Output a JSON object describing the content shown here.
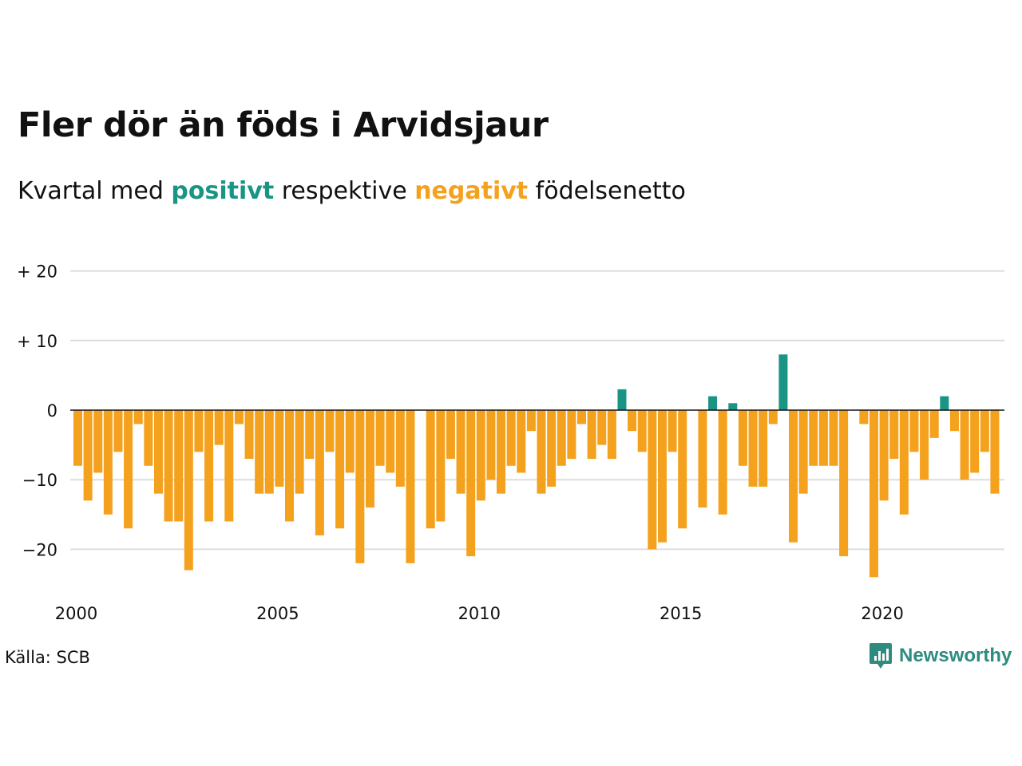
{
  "header": {
    "title": "Fler dör än föds i Arvidsjaur",
    "subtitle_prefix": "Kvartal med ",
    "subtitle_positive": "positivt",
    "subtitle_middle": " respektive ",
    "subtitle_negative": "negativt",
    "subtitle_suffix": " födelsenetto"
  },
  "footer": {
    "source": "Källa: SCB",
    "brand": "Newsworthy"
  },
  "colors": {
    "positive": "#1a9585",
    "negative": "#f4a11d",
    "grid": "#dddddd",
    "zero_line": "#111111"
  },
  "chart_data": {
    "type": "bar",
    "x_start": "2000 Q1",
    "x_step": "quarter",
    "values": [
      -8,
      -13,
      -9,
      -15,
      -6,
      -17,
      -2,
      -8,
      -12,
      -16,
      -16,
      -23,
      -6,
      -16,
      -5,
      -16,
      -2,
      -7,
      -12,
      -12,
      -11,
      -16,
      -12,
      -7,
      -18,
      -6,
      -17,
      -9,
      -22,
      -14,
      -8,
      -9,
      -11,
      -22,
      0,
      -17,
      -16,
      -7,
      -12,
      -21,
      -13,
      -10,
      -12,
      -8,
      -9,
      -3,
      -12,
      -11,
      -8,
      -7,
      -2,
      -7,
      -5,
      -7,
      3,
      -3,
      -6,
      -20,
      -19,
      -6,
      -17,
      0,
      -14,
      2,
      -15,
      1,
      -8,
      -11,
      -11,
      -2,
      8,
      -19,
      -12,
      -8,
      -8,
      -8,
      -21,
      0,
      -2,
      -24,
      -13,
      -7,
      -15,
      -6,
      -10,
      -4,
      2,
      -3,
      -10,
      -9,
      -6,
      -12
    ],
    "x_ticks": [
      {
        "value": 2000,
        "label": "2000"
      },
      {
        "value": 2005,
        "label": "2005"
      },
      {
        "value": 2010,
        "label": "2010"
      },
      {
        "value": 2015,
        "label": "2015"
      },
      {
        "value": 2020,
        "label": "2020"
      }
    ],
    "y_ticks": [
      {
        "value": 20,
        "label": "+ 20"
      },
      {
        "value": 10,
        "label": "+ 10"
      },
      {
        "value": 0,
        "label": "0"
      },
      {
        "value": -10,
        "label": "−10"
      },
      {
        "value": -20,
        "label": "−20"
      }
    ],
    "ylim": [
      -27,
      20
    ],
    "grid": true
  }
}
